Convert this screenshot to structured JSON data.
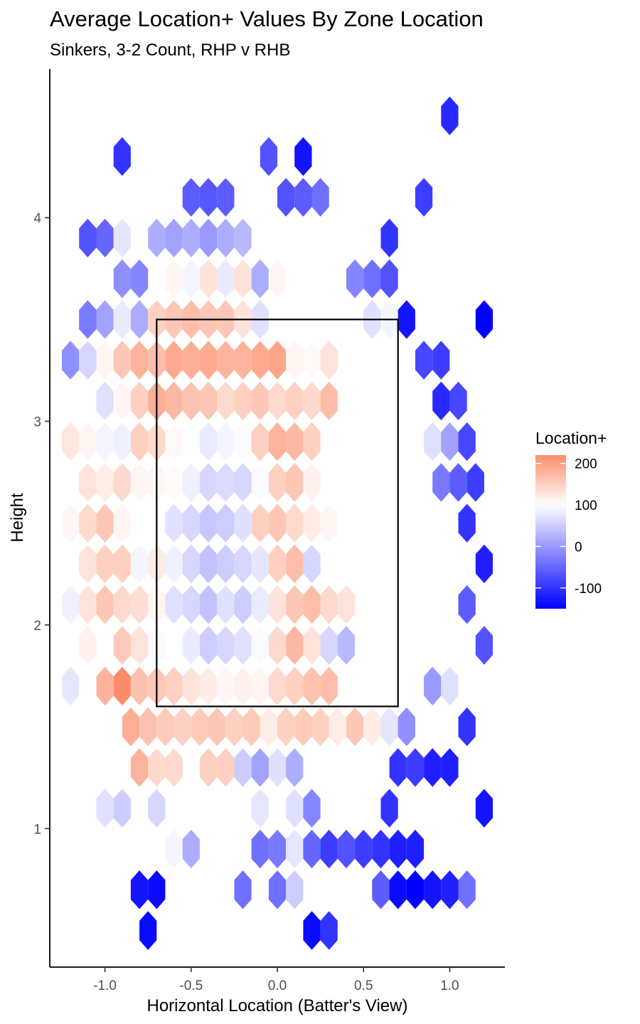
{
  "chart_data": {
    "type": "heatmap",
    "subtype": "hexbin",
    "title": "Average Location+ Values By Zone Location",
    "subtitle": "Sinkers, 3-2 Count, RHP v RHB",
    "xlabel": "Horizontal Location (Batter's View)",
    "ylabel": "Height",
    "xlim": [
      -1.32,
      1.32
    ],
    "ylim": [
      0.32,
      4.73
    ],
    "x_ticks": [
      -1.0,
      -0.5,
      0.0,
      0.5,
      1.0
    ],
    "x_tick_labels": [
      "-1.0",
      "-0.5",
      "0.0",
      "0.5",
      "1.0"
    ],
    "y_ticks": [
      1,
      2,
      3,
      4
    ],
    "y_tick_labels": [
      "1",
      "2",
      "3",
      "4"
    ],
    "grid": false,
    "strike_zone": {
      "x": [
        -0.7,
        0.7
      ],
      "y": [
        1.6,
        3.5
      ]
    },
    "legend": {
      "title": "Location+",
      "position": "right",
      "scale_min": -150,
      "scale_max": 220,
      "ticks": [
        200,
        100,
        0,
        -100
      ],
      "tick_labels": [
        "200",
        "100",
        "0",
        "-100"
      ],
      "colors": {
        "low": "#0000ff",
        "mid": "#ffffff",
        "high": "#fc8d6b"
      },
      "midpoint": 100
    },
    "hex_size": {
      "dx": 0.1,
      "dy": 0.19
    },
    "rows": [
      {
        "y": 4.5,
        "x_start": 1.0,
        "values": [
          -110
        ]
      },
      {
        "y": 4.3,
        "x_start": -0.9,
        "values": [
          -100
        ]
      },
      {
        "y": 4.3,
        "x_start": -0.05,
        "values": [
          -70,
          null,
          -130
        ]
      },
      {
        "y": 4.1,
        "x_start": -0.5,
        "values": [
          -60,
          -65,
          -60
        ]
      },
      {
        "y": 4.1,
        "x_start": 0.05,
        "values": [
          -70,
          -60,
          -40
        ]
      },
      {
        "y": 4.1,
        "x_start": 0.85,
        "values": [
          -90
        ]
      },
      {
        "y": 3.9,
        "x_start": -1.1,
        "values": [
          -70,
          -50,
          75,
          null,
          20,
          10,
          20,
          0,
          20,
          30
        ]
      },
      {
        "y": 3.9,
        "x_start": 0.65,
        "values": [
          -100
        ]
      },
      {
        "y": 3.7,
        "x_start": -0.9,
        "values": [
          -10,
          -20,
          null,
          110,
          90,
          130,
          80,
          130,
          20,
          110
        ]
      },
      {
        "y": 3.7,
        "x_start": 0.45,
        "values": [
          -20,
          -40,
          -70
        ]
      },
      {
        "y": 3.5,
        "x_start": -1.1,
        "values": [
          -30,
          10,
          80,
          20,
          150,
          160,
          170,
          160,
          160,
          130,
          70
        ]
      },
      {
        "y": 3.5,
        "x_start": 0.55,
        "values": [
          70,
          90,
          -130
        ]
      },
      {
        "y": 3.5,
        "x_start": 1.2,
        "values": [
          -150
        ]
      },
      {
        "y": 3.3,
        "x_start": -1.2,
        "values": [
          -10,
          60,
          110,
          160,
          180,
          170,
          190,
          185,
          190,
          180,
          180,
          190,
          195,
          110,
          105,
          130
        ]
      },
      {
        "y": 3.3,
        "x_start": 0.85,
        "values": [
          -80,
          -90
        ]
      },
      {
        "y": 3.1,
        "x_start": -1.1,
        "values": [
          100,
          70,
          110,
          150,
          185,
          175,
          165,
          160,
          140,
          150,
          160,
          140,
          150,
          140,
          170
        ]
      },
      {
        "y": 3.1,
        "x_start": 0.95,
        "values": [
          -110,
          -80
        ]
      },
      {
        "y": 2.9,
        "x_start": -1.2,
        "values": [
          125,
          110,
          90,
          85,
          150,
          140,
          105,
          100,
          80,
          90,
          95,
          150,
          180,
          175,
          150
        ]
      },
      {
        "y": 2.9,
        "x_start": 0.9,
        "values": [
          70,
          10,
          -80
        ]
      },
      {
        "y": 2.7,
        "x_start": -1.1,
        "values": [
          130,
          120,
          140,
          110,
          110,
          105,
          85,
          60,
          65,
          60,
          95,
          150,
          160,
          115
        ]
      },
      {
        "y": 2.7,
        "x_start": 0.95,
        "values": [
          -30,
          -60,
          -90
        ]
      },
      {
        "y": 2.5,
        "x_start": -1.2,
        "values": [
          110,
          140,
          160,
          110,
          100,
          100,
          70,
          60,
          45,
          50,
          70,
          150,
          160,
          140,
          120,
          110
        ]
      },
      {
        "y": 2.5,
        "x_start": 1.1,
        "values": [
          -100
        ]
      },
      {
        "y": 2.3,
        "x_start": -1.1,
        "values": [
          130,
          150,
          150,
          90,
          120,
          85,
          60,
          40,
          50,
          60,
          75,
          150,
          170,
          60
        ]
      },
      {
        "y": 2.3,
        "x_start": 1.2,
        "values": [
          -120
        ]
      },
      {
        "y": 2.1,
        "x_start": -1.2,
        "values": [
          85,
          130,
          160,
          140,
          135,
          110,
          70,
          60,
          40,
          70,
          50,
          80,
          130,
          160,
          170,
          140,
          130
        ]
      },
      {
        "y": 2.1,
        "x_start": 1.1,
        "values": [
          -60
        ]
      },
      {
        "y": 1.9,
        "x_start": -1.1,
        "values": [
          115,
          100,
          155,
          130,
          95,
          100,
          80,
          50,
          60,
          70,
          95,
          140,
          175,
          130,
          60,
          30
        ]
      },
      {
        "y": 1.9,
        "x_start": 1.2,
        "values": [
          -70
        ]
      },
      {
        "y": 1.7,
        "x_start": -1.2,
        "values": [
          75,
          null,
          180,
          220,
          165,
          160,
          150,
          130,
          120,
          110,
          115,
          110,
          140,
          150,
          165,
          170
        ]
      },
      {
        "y": 1.7,
        "x_start": 0.9,
        "values": [
          0,
          70
        ]
      },
      {
        "y": 1.5,
        "x_start": -0.85,
        "values": [
          185,
          165,
          155,
          150,
          155,
          160,
          150,
          155,
          120,
          150,
          155,
          150,
          120,
          160,
          120,
          75,
          -10
        ]
      },
      {
        "y": 1.5,
        "x_start": 1.1,
        "values": [
          -100
        ]
      },
      {
        "y": 1.3,
        "x_start": -0.8,
        "values": [
          180,
          140,
          140,
          null,
          150,
          150,
          50,
          10,
          70,
          20
        ]
      },
      {
        "y": 1.3,
        "x_start": 0.7,
        "values": [
          -100,
          -90,
          -120,
          -120
        ]
      },
      {
        "y": 1.1,
        "x_start": -1.0,
        "values": [
          70,
          50,
          null,
          60,
          null,
          100
        ]
      },
      {
        "y": 1.1,
        "x_start": -0.1,
        "values": [
          75,
          100,
          70,
          -20
        ]
      },
      {
        "y": 1.1,
        "x_start": 0.65,
        "values": [
          -100
        ]
      },
      {
        "y": 1.1,
        "x_start": 1.2,
        "values": [
          -130
        ]
      },
      {
        "y": 0.9,
        "x_start": -0.6,
        "values": [
          90,
          20
        ]
      },
      {
        "y": 0.9,
        "x_start": -0.1,
        "values": [
          -40,
          -30,
          75,
          -50,
          -90,
          -70,
          -90,
          -100,
          -120,
          -120
        ]
      },
      {
        "y": 0.7,
        "x_start": -0.8,
        "values": [
          -130,
          -140
        ]
      },
      {
        "y": 0.7,
        "x_start": -0.2,
        "values": [
          -40,
          null,
          -40,
          50
        ]
      },
      {
        "y": 0.7,
        "x_start": 0.6,
        "values": [
          -60,
          -140,
          -150,
          -130,
          -120,
          -40
        ]
      },
      {
        "y": 0.5,
        "x_start": -0.75,
        "values": [
          -140
        ]
      },
      {
        "y": 0.5,
        "x_start": 0.2,
        "values": [
          -140,
          -100
        ]
      }
    ]
  }
}
